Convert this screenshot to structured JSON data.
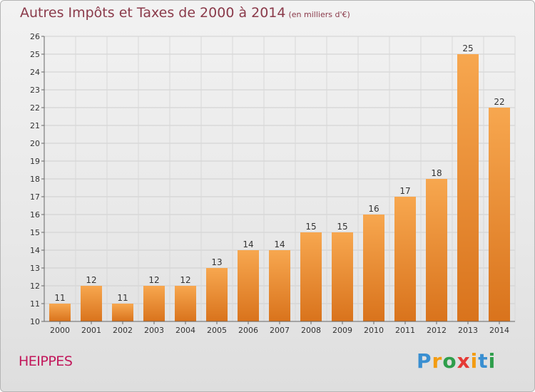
{
  "header": {
    "title": "Autres Impôts et Taxes de 2000 à 2014",
    "subtitle": "(en milliers d'€)"
  },
  "footer": {
    "commune": "HEIPPES",
    "logo_text": "Proxiti"
  },
  "colors": {
    "bar_light": "#f7a74f",
    "bar_dark": "#d9731c",
    "title": "#8a3a4a",
    "commune": "#c2185b"
  },
  "chart_data": {
    "type": "bar",
    "categories": [
      "2000",
      "2001",
      "2002",
      "2003",
      "2004",
      "2005",
      "2006",
      "2007",
      "2008",
      "2009",
      "2010",
      "2011",
      "2012",
      "2013",
      "2014"
    ],
    "values": [
      11,
      12,
      11,
      12,
      12,
      13,
      14,
      14,
      15,
      15,
      16,
      17,
      18,
      25,
      22
    ],
    "title": "Autres Impôts et Taxes de 2000 à 2014",
    "subtitle": "(en milliers d'€)",
    "ylim": [
      10,
      26
    ],
    "yticks": [
      10,
      11,
      12,
      13,
      14,
      15,
      16,
      17,
      18,
      19,
      20,
      21,
      22,
      23,
      24,
      25,
      26
    ],
    "grid": true,
    "data_labels": true
  }
}
